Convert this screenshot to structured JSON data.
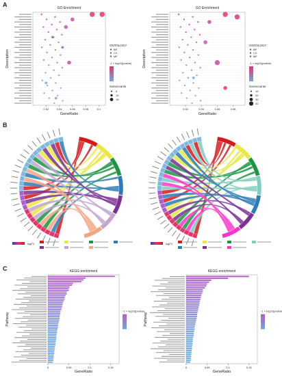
{
  "figure": {
    "panel_labels": [
      "A",
      "B",
      "C"
    ]
  },
  "chart_data": [
    {
      "type": "scatter",
      "panel": "A",
      "title": "GO Enrichment",
      "xlabel": "GeneRatio",
      "ylabel": "Description",
      "x_ticks": [
        0.02,
        0.04,
        0.06,
        0.08,
        0.1
      ],
      "xlim": [
        0.0,
        0.11
      ],
      "legend": {
        "ontology_title": "ONTOLOGY",
        "ontology_items": [
          "BP",
          "CC",
          "MF"
        ],
        "color_title": "-1 × log10(pvalue)",
        "color_low": "#6fa8dc",
        "color_high": "#e8336b",
        "size_title": "Genecounts",
        "size_items": [
          "5",
          "10",
          "15"
        ]
      },
      "approximate_points": [
        {
          "x": 0.105,
          "y_rank": 1,
          "size": 3,
          "color": "#e8336b"
        },
        {
          "x": 0.09,
          "y_rank": 1,
          "size": 3,
          "color": "#e8336b"
        },
        {
          "x": 0.06,
          "y_rank": 3,
          "size": 2,
          "color": "#c44b9e"
        },
        {
          "x": 0.05,
          "y_rank": 6,
          "size": 2,
          "color": "#b85cb0"
        },
        {
          "x": 0.03,
          "y_rank": 10,
          "size": 1,
          "color": "#7f6bc8"
        },
        {
          "x": 0.045,
          "y_rank": 14,
          "size": 1,
          "color": "#7f6bc8"
        },
        {
          "x": 0.055,
          "y_rank": 20,
          "size": 2,
          "color": "#c44b9e"
        },
        {
          "x": 0.02,
          "y_rank": 28,
          "size": 1,
          "color": "#6fa8dc"
        },
        {
          "x": 0.035,
          "y_rank": 34,
          "size": 1,
          "color": "#6fa8dc"
        }
      ]
    },
    {
      "type": "scatter",
      "panel": "A",
      "title": "GO Enrichment",
      "xlabel": "GeneRatio",
      "ylabel": "Description",
      "x_ticks": [
        0.02,
        0.04,
        0.06,
        0.08
      ],
      "xlim": [
        0.0,
        0.095
      ],
      "legend": {
        "ontology_title": "ONTOLOGY",
        "ontology_items": [
          "BP",
          "CC",
          "MF"
        ],
        "color_title": "-1 × log10(pvalue)",
        "color_low": "#6fa8dc",
        "color_high": "#e8336b",
        "size_title": "Genecounts",
        "size_items": [
          "10",
          "20",
          "30",
          "40"
        ]
      },
      "approximate_points": [
        {
          "x": 0.085,
          "y_rank": 2,
          "size": 3,
          "color": "#e8336b"
        },
        {
          "x": 0.07,
          "y_rank": 1,
          "size": 3,
          "color": "#e8336b"
        },
        {
          "x": 0.05,
          "y_rank": 4,
          "size": 2,
          "color": "#c44b9e"
        },
        {
          "x": 0.045,
          "y_rank": 12,
          "size": 2,
          "color": "#b85cb0"
        },
        {
          "x": 0.06,
          "y_rank": 20,
          "size": 3,
          "color": "#c44b9e"
        },
        {
          "x": 0.03,
          "y_rank": 26,
          "size": 1,
          "color": "#6fa8dc"
        },
        {
          "x": 0.07,
          "y_rank": 30,
          "size": 2,
          "color": "#e8336b"
        }
      ]
    },
    {
      "type": "chord",
      "panel": "B",
      "legend_title": "logFC",
      "category_colors": [
        "#d7191c",
        "#e8e840",
        "#1a9641",
        "#2c7bb6",
        "#7b3294",
        "#c2a5cf",
        "#f4a582"
      ],
      "n_left_genes": 28
    },
    {
      "type": "chord",
      "panel": "B",
      "legend_title": "logFC",
      "category_colors": [
        "#d7191c",
        "#e8e840",
        "#1a9641",
        "#80cdc1",
        "#2c7bb6",
        "#7b3294",
        "#ff33cc"
      ],
      "n_left_genes": 30
    },
    {
      "type": "bar",
      "panel": "C",
      "orientation": "horizontal",
      "title": "KEGG enrichment",
      "xlabel": "GeneRatio",
      "ylabel": "Pathway",
      "x_ticks": [
        0.0,
        0.05,
        0.1,
        0.15
      ],
      "xlim": [
        0,
        0.17
      ],
      "legend": {
        "color_title": "-1 × log10(pvalue)",
        "color_low": "#6fa8dc",
        "color_high": "#b45cc8"
      },
      "values": [
        0.16,
        0.09,
        0.085,
        0.08,
        0.06,
        0.058,
        0.052,
        0.05,
        0.05,
        0.045,
        0.045,
        0.042,
        0.04,
        0.04,
        0.038,
        0.036,
        0.035,
        0.034,
        0.033,
        0.032,
        0.03,
        0.03,
        0.029,
        0.028,
        0.028,
        0.027,
        0.026,
        0.025,
        0.024,
        0.024,
        0.023,
        0.022,
        0.022,
        0.021,
        0.02,
        0.02,
        0.02,
        0.019,
        0.018,
        0.018,
        0.017,
        0.016,
        0.016,
        0.015,
        0.015,
        0.014,
        0.014,
        0.013,
        0.013,
        0.012
      ]
    },
    {
      "type": "bar",
      "panel": "C",
      "orientation": "horizontal",
      "title": "KEGG enrichment",
      "xlabel": "GeneRatio",
      "ylabel": "Pathway",
      "x_ticks": [
        0.0,
        0.05,
        0.1,
        0.15
      ],
      "xlim": [
        0,
        0.17
      ],
      "legend": {
        "color_title": "-1 × log10(pvalue)",
        "color_low": "#6fa8dc",
        "color_high": "#b45cc8"
      },
      "values": [
        0.15,
        0.1,
        0.06,
        0.055,
        0.05,
        0.048,
        0.045,
        0.04,
        0.04,
        0.038,
        0.036,
        0.035,
        0.034,
        0.033,
        0.032,
        0.031,
        0.03,
        0.029,
        0.028,
        0.027,
        0.026,
        0.026,
        0.025,
        0.024,
        0.023,
        0.022,
        0.021,
        0.02,
        0.02,
        0.019,
        0.018,
        0.018,
        0.017,
        0.016,
        0.016,
        0.015,
        0.015,
        0.014,
        0.014,
        0.013,
        0.013,
        0.012,
        0.012,
        0.011,
        0.011,
        0.01
      ]
    }
  ]
}
